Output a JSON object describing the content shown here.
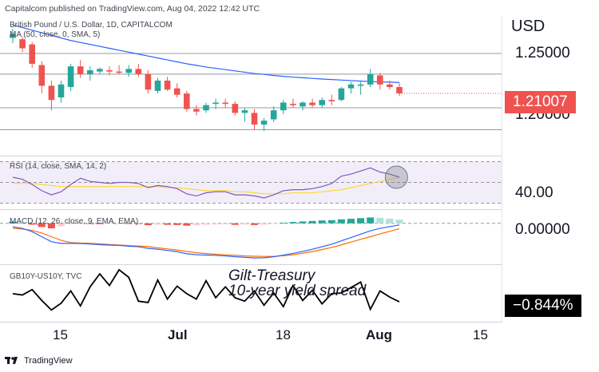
{
  "header": {
    "publisher_line": "Capitalcom published on TradingView.com, Aug 04, 2022 12:42 UTC"
  },
  "main_pane": {
    "symbol_line": "British Pound / U.S. Dollar, 1D, CAPITALCOM",
    "ma_line": "MA (50, close, 0, SMA, 5)"
  },
  "currency_label": "USD",
  "price_axis": [
    "1.25000",
    "1.20000"
  ],
  "last_price_badge": "1.21007",
  "rsi_pane": {
    "label": "RSI (14, close, SMA, 14, 2)",
    "axis_value": "40.00"
  },
  "macd_pane": {
    "label": "MACD (12, 26, close, 9, EMA, EMA)",
    "axis_value": "0.00000"
  },
  "spread_pane": {
    "label": "GB10Y-US10Y, TVC",
    "annotation_line1": "Gilt-Treasury",
    "annotation_line2": "10-year yield spread",
    "last_value_badge": "−0.844%"
  },
  "time_axis": [
    "15",
    "Jul",
    "18",
    "Aug",
    "15"
  ],
  "footer": {
    "brand": "TradingView"
  },
  "colors": {
    "up": "#26a69a",
    "down": "#ef5350",
    "ma": "#2962ff",
    "rsi": "#7e57c2",
    "rsi_ma": "#fdd835",
    "macd": "#2962ff",
    "signal": "#ff6d00",
    "spread": "#000000",
    "badge_price": "#ef5350",
    "badge_spread": "#000000"
  },
  "chart_data": [
    {
      "type": "candlestick",
      "title": "British Pound / U.S. Dollar, 1D, CAPITALCOM",
      "ylim": [
        1.165,
        1.27
      ],
      "candles": [
        {
          "o": 1.253,
          "h": 1.26,
          "l": 1.249,
          "c": 1.256
        },
        {
          "o": 1.252,
          "h": 1.254,
          "l": 1.242,
          "c": 1.245
        },
        {
          "o": 1.248,
          "h": 1.25,
          "l": 1.23,
          "c": 1.233
        },
        {
          "o": 1.232,
          "h": 1.235,
          "l": 1.21,
          "c": 1.216
        },
        {
          "o": 1.216,
          "h": 1.22,
          "l": 1.197,
          "c": 1.205
        },
        {
          "o": 1.207,
          "h": 1.22,
          "l": 1.203,
          "c": 1.217
        },
        {
          "o": 1.215,
          "h": 1.233,
          "l": 1.212,
          "c": 1.231
        },
        {
          "o": 1.231,
          "h": 1.236,
          "l": 1.222,
          "c": 1.225
        },
        {
          "o": 1.225,
          "h": 1.231,
          "l": 1.22,
          "c": 1.228
        },
        {
          "o": 1.227,
          "h": 1.23,
          "l": 1.225,
          "c": 1.229
        },
        {
          "o": 1.228,
          "h": 1.231,
          "l": 1.224,
          "c": 1.227
        },
        {
          "o": 1.227,
          "h": 1.232,
          "l": 1.225,
          "c": 1.226
        },
        {
          "o": 1.226,
          "h": 1.232,
          "l": 1.223,
          "c": 1.229
        },
        {
          "o": 1.229,
          "h": 1.233,
          "l": 1.223,
          "c": 1.225
        },
        {
          "o": 1.225,
          "h": 1.228,
          "l": 1.21,
          "c": 1.213
        },
        {
          "o": 1.212,
          "h": 1.222,
          "l": 1.21,
          "c": 1.22
        },
        {
          "o": 1.22,
          "h": 1.223,
          "l": 1.212,
          "c": 1.213
        },
        {
          "o": 1.214,
          "h": 1.218,
          "l": 1.207,
          "c": 1.209
        },
        {
          "o": 1.21,
          "h": 1.212,
          "l": 1.196,
          "c": 1.198
        },
        {
          "o": 1.198,
          "h": 1.201,
          "l": 1.193,
          "c": 1.196
        },
        {
          "o": 1.197,
          "h": 1.203,
          "l": 1.195,
          "c": 1.201
        },
        {
          "o": 1.202,
          "h": 1.206,
          "l": 1.198,
          "c": 1.203
        },
        {
          "o": 1.203,
          "h": 1.206,
          "l": 1.199,
          "c": 1.202
        },
        {
          "o": 1.202,
          "h": 1.204,
          "l": 1.193,
          "c": 1.195
        },
        {
          "o": 1.195,
          "h": 1.199,
          "l": 1.188,
          "c": 1.197
        },
        {
          "o": 1.195,
          "h": 1.198,
          "l": 1.182,
          "c": 1.186
        },
        {
          "o": 1.186,
          "h": 1.191,
          "l": 1.181,
          "c": 1.189
        },
        {
          "o": 1.19,
          "h": 1.2,
          "l": 1.188,
          "c": 1.197
        },
        {
          "o": 1.197,
          "h": 1.205,
          "l": 1.194,
          "c": 1.203
        },
        {
          "o": 1.202,
          "h": 1.206,
          "l": 1.199,
          "c": 1.201
        },
        {
          "o": 1.2,
          "h": 1.204,
          "l": 1.197,
          "c": 1.203
        },
        {
          "o": 1.203,
          "h": 1.206,
          "l": 1.199,
          "c": 1.201
        },
        {
          "o": 1.201,
          "h": 1.207,
          "l": 1.199,
          "c": 1.205
        },
        {
          "o": 1.205,
          "h": 1.209,
          "l": 1.201,
          "c": 1.204
        },
        {
          "o": 1.205,
          "h": 1.215,
          "l": 1.204,
          "c": 1.214
        },
        {
          "o": 1.214,
          "h": 1.219,
          "l": 1.21,
          "c": 1.217
        },
        {
          "o": 1.216,
          "h": 1.219,
          "l": 1.209,
          "c": 1.217
        },
        {
          "o": 1.217,
          "h": 1.229,
          "l": 1.215,
          "c": 1.225
        },
        {
          "o": 1.224,
          "h": 1.226,
          "l": 1.213,
          "c": 1.217
        },
        {
          "o": 1.217,
          "h": 1.22,
          "l": 1.213,
          "c": 1.215
        },
        {
          "o": 1.215,
          "h": 1.218,
          "l": 1.208,
          "c": 1.2101
        }
      ],
      "ma50": [
        1.263,
        1.261,
        1.259,
        1.257,
        1.255,
        1.253,
        1.251,
        1.2495,
        1.248,
        1.2465,
        1.245,
        1.2435,
        1.242,
        1.2405,
        1.239,
        1.2375,
        1.236,
        1.2345,
        1.233,
        1.2318,
        1.2305,
        1.2295,
        1.2285,
        1.2275,
        1.2265,
        1.2255,
        1.2248,
        1.224,
        1.2233,
        1.2227,
        1.2222,
        1.2217,
        1.2212,
        1.2208,
        1.2204,
        1.22,
        1.2196,
        1.2193,
        1.219,
        1.2188,
        1.2185
      ],
      "horizontal_levels": [
        1.241,
        1.225,
        1.199,
        1.182
      ]
    },
    {
      "type": "line",
      "title": "RSI (14, close, SMA, 14, 2)",
      "ylim": [
        25,
        75
      ],
      "series": [
        {
          "name": "RSI",
          "values": [
            55,
            53,
            48,
            42,
            38,
            41,
            48,
            54,
            51,
            50,
            49,
            50,
            50,
            49,
            45,
            47,
            46,
            44,
            39,
            37,
            40,
            41,
            41,
            38,
            38,
            37,
            35,
            38,
            42,
            43,
            43,
            44,
            46,
            49,
            56,
            58,
            61,
            64,
            60,
            58,
            55
          ]
        },
        {
          "name": "RSI MA",
          "values": [
            49,
            49,
            49,
            48,
            47,
            46,
            46,
            46,
            46,
            46,
            46,
            46,
            46,
            46,
            46,
            46,
            45,
            45,
            44,
            43,
            42,
            42,
            42,
            41,
            41,
            40,
            39,
            39,
            39,
            40,
            40,
            40,
            41,
            42,
            43,
            45,
            47,
            49,
            51,
            53,
            55
          ]
        }
      ],
      "bands": [
        70,
        50,
        30
      ]
    },
    {
      "type": "bar",
      "title": "MACD (12, 26, close, 9, EMA, EMA)",
      "ylim": [
        -0.024,
        0.008
      ],
      "series": [
        {
          "name": "Histogram",
          "values": [
            0.001,
            0.0004,
            -0.0008,
            -0.0022,
            -0.003,
            -0.0018,
            -0.0005,
            -0.0003,
            -0.0004,
            -0.0005,
            -0.0003,
            -0.0002,
            -0.0004,
            -0.0004,
            -0.0011,
            -0.0008,
            -0.0009,
            -0.001,
            -0.0014,
            -0.0012,
            -0.0009,
            -0.0007,
            -0.0006,
            -0.0009,
            -0.0008,
            -0.001,
            -0.0008,
            -0.0002,
            0.0004,
            0.0008,
            0.0011,
            0.0014,
            0.0017,
            0.0019,
            0.0024,
            0.0027,
            0.0031,
            0.0035,
            0.0033,
            0.0028,
            0.0022
          ]
        },
        {
          "name": "MACD",
          "values": [
            -0.002,
            -0.003,
            -0.005,
            -0.008,
            -0.011,
            -0.012,
            -0.012,
            -0.0121,
            -0.0124,
            -0.0128,
            -0.013,
            -0.0132,
            -0.0137,
            -0.014,
            -0.015,
            -0.0155,
            -0.0162,
            -0.017,
            -0.0182,
            -0.0188,
            -0.019,
            -0.0192,
            -0.0195,
            -0.02,
            -0.0203,
            -0.0207,
            -0.0206,
            -0.02,
            -0.019,
            -0.018,
            -0.0168,
            -0.0155,
            -0.014,
            -0.0125,
            -0.0105,
            -0.0085,
            -0.0065,
            -0.0045,
            -0.003,
            -0.002,
            -0.001
          ]
        },
        {
          "name": "Signal",
          "values": [
            -0.003,
            -0.0034,
            -0.0042,
            -0.0058,
            -0.008,
            -0.0102,
            -0.0115,
            -0.0118,
            -0.012,
            -0.0123,
            -0.0127,
            -0.013,
            -0.0133,
            -0.0136,
            -0.0139,
            -0.0147,
            -0.0153,
            -0.016,
            -0.0168,
            -0.0176,
            -0.0181,
            -0.0185,
            -0.0189,
            -0.0191,
            -0.0195,
            -0.0197,
            -0.0198,
            -0.0198,
            -0.0194,
            -0.0188,
            -0.0179,
            -0.0169,
            -0.0157,
            -0.0144,
            -0.0129,
            -0.0112,
            -0.0096,
            -0.008,
            -0.0063,
            -0.0048,
            -0.0032
          ]
        }
      ]
    },
    {
      "type": "line",
      "title": "GB10Y-US10Y, TVC",
      "ylim": [
        -1.12,
        -0.3
      ],
      "series": [
        {
          "name": "GB10Y-US10Y",
          "values": [
            -0.72,
            -0.74,
            -0.66,
            -0.82,
            -0.96,
            -0.86,
            -0.68,
            -0.9,
            -0.62,
            -0.43,
            -0.6,
            -0.37,
            -0.48,
            -0.83,
            -0.85,
            -0.52,
            -0.8,
            -0.61,
            -0.72,
            -0.8,
            -0.53,
            -0.78,
            -0.62,
            -0.78,
            -0.83,
            -0.68,
            -0.89,
            -0.71,
            -0.91,
            -0.6,
            -0.82,
            -0.67,
            -0.87,
            -0.72,
            -0.71,
            -0.63,
            -0.55,
            -0.95,
            -0.68,
            -0.77,
            -0.84
          ]
        }
      ]
    }
  ]
}
